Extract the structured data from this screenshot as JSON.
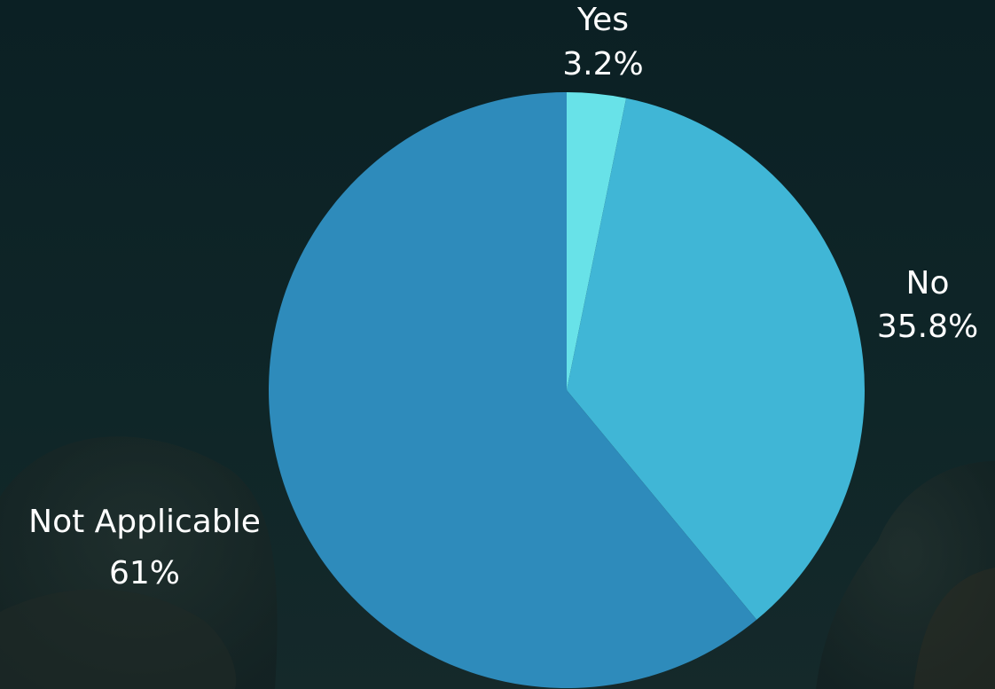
{
  "chart_data": {
    "type": "pie",
    "slices": [
      {
        "label": "Yes",
        "value": 3.2,
        "value_label": "3.2%",
        "color": "#68e2e8"
      },
      {
        "label": "No",
        "value": 35.8,
        "value_label": "35.8%",
        "color": "#40b6d6"
      },
      {
        "label": "Not Applicable",
        "value": 61,
        "value_label": "61%",
        "color": "#2e8bbb"
      }
    ],
    "start_angle": "12 o'clock",
    "direction": "clockwise",
    "legend": "none",
    "data_labels": "outside slices"
  },
  "theme": {
    "background_top": "#0b2024",
    "background_bottom": "#12292b",
    "label_color": "#ffffff"
  }
}
